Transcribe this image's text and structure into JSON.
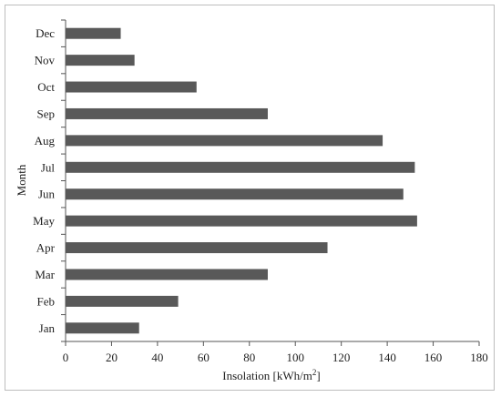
{
  "chart_data": {
    "type": "bar",
    "orientation": "horizontal",
    "categories": [
      "Jan",
      "Feb",
      "Mar",
      "Apr",
      "May",
      "Jun",
      "Jul",
      "Aug",
      "Sep",
      "Oct",
      "Nov",
      "Dec"
    ],
    "values": [
      32,
      49,
      88,
      114,
      153,
      147,
      152,
      138,
      88,
      57,
      30,
      24
    ],
    "xlabel": "Insolation [kWh/m",
    "xlabel_sup": "2",
    "xlabel_end": "]",
    "ylabel": "Month",
    "xlim": [
      0,
      180
    ],
    "xticks": [
      0,
      20,
      40,
      60,
      80,
      100,
      120,
      140,
      160,
      180
    ],
    "grid": false,
    "bar_color": "#595959"
  }
}
